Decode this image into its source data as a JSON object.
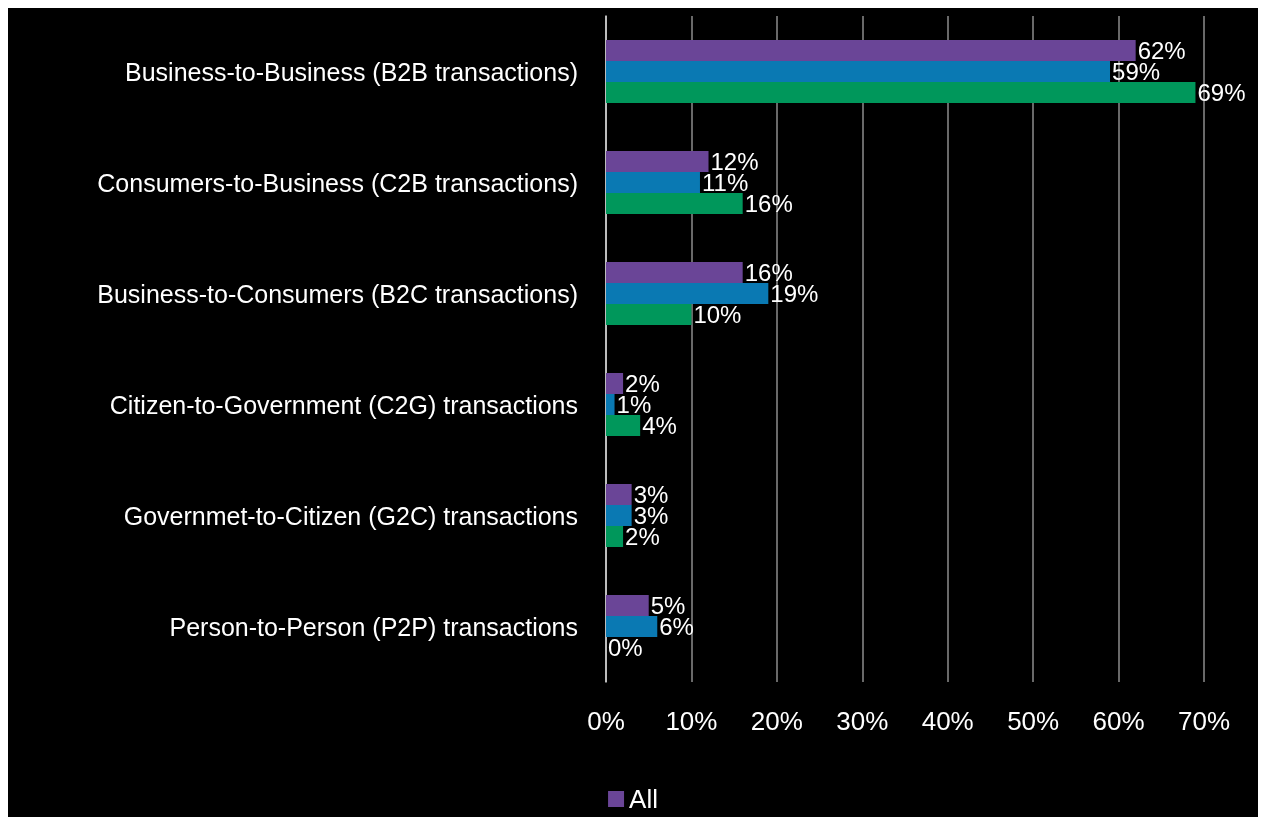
{
  "chart_data": {
    "type": "bar",
    "orientation": "horizontal",
    "categories": [
      "Business-to-Business (B2B transactions)",
      "Consumers-to-Business (C2B transactions)",
      "Business-to-Consumers (B2C transactions)",
      "Citizen-to-Government (C2G) transactions",
      "Governmet-to-Citizen (G2C) transactions",
      "Person-to-Person (P2P) transactions"
    ],
    "series": [
      {
        "name": "All",
        "color": "#6a4597",
        "values": [
          62,
          12,
          16,
          2,
          3,
          5
        ],
        "value_labels": [
          "62%",
          "12%",
          "16%",
          "2%",
          "3%",
          "5%"
        ]
      },
      {
        "color": "#0a79b3",
        "values": [
          59,
          11,
          19,
          1,
          3,
          6
        ],
        "value_labels": [
          "59%",
          "11%",
          "19%",
          "1%",
          "3%",
          "6%"
        ]
      },
      {
        "color": "#00975b",
        "values": [
          69,
          16,
          10,
          4,
          2,
          0
        ],
        "value_labels": [
          "69%",
          "16%",
          "10%",
          "4%",
          "2%",
          "0%"
        ]
      }
    ],
    "xlim": [
      0,
      70
    ],
    "xticks": [
      {
        "value": 0,
        "label": "0%"
      },
      {
        "value": 10,
        "label": "10%"
      },
      {
        "value": 20,
        "label": "20%"
      },
      {
        "value": 30,
        "label": "30%"
      },
      {
        "value": 40,
        "label": "40%"
      },
      {
        "value": 50,
        "label": "50%"
      },
      {
        "value": 60,
        "label": "60%"
      },
      {
        "value": 70,
        "label": "70%"
      }
    ],
    "grid": "x",
    "legend": "bottom"
  }
}
